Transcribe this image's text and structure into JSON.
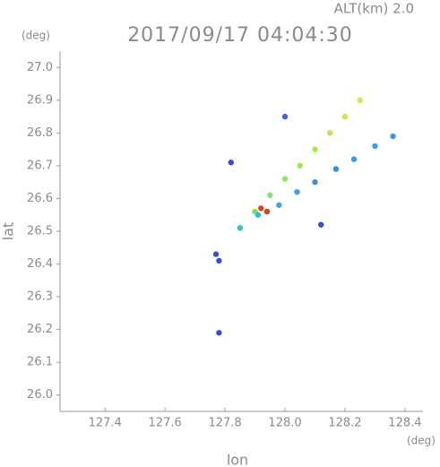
{
  "chart_data": {
    "type": "scatter",
    "title": "2017/09/17 04:04:30",
    "subtitle": "ALT(km) 2.0",
    "x_label": "lon",
    "y_label": "lat",
    "x_unit": "(deg)",
    "y_unit": "(deg)",
    "x": [
      127.85,
      127.9,
      127.95,
      128.0,
      128.05,
      128.1,
      128.15,
      128.2,
      128.25,
      127.85,
      127.91,
      127.98,
      128.04,
      128.1,
      128.17,
      128.23,
      128.3,
      128.36,
      128.0,
      127.77,
      127.78,
      127.78,
      127.82,
      128.12,
      127.92,
      127.94
    ],
    "y": [
      26.51,
      26.56,
      26.61,
      26.66,
      26.7,
      26.75,
      26.8,
      26.85,
      26.9,
      26.51,
      26.55,
      26.58,
      26.62,
      26.65,
      26.69,
      26.72,
      26.76,
      26.79,
      26.85,
      26.43,
      26.41,
      26.19,
      26.71,
      26.52,
      26.57,
      26.56
    ],
    "colors": [
      "#8ce05a",
      "#84e060",
      "#7ee46a",
      "#8ae65a",
      "#9ae850",
      "#a6ea4a",
      "#b2ec44",
      "#bcee40",
      "#c8f03c",
      "#40c0c0",
      "#3cb4d8",
      "#38a8e0",
      "#3aa0e4",
      "#3494e8",
      "#3090ea",
      "#3a98ec",
      "#3c9cee",
      "#4090f0",
      "#4060e8",
      "#3050d8",
      "#3050d8",
      "#3050d8",
      "#3050d8",
      "#3050d8",
      "#e04020",
      "#e04020"
    ],
    "xlim": [
      127.25,
      128.46
    ],
    "ylim": [
      25.95,
      27.05
    ],
    "xticks": [
      127.4,
      127.6,
      127.8,
      {
        "value": 128.0,
        "label": "128.0"
      },
      128.2,
      128.4
    ],
    "yticks": [
      {
        "value": 26.0,
        "label": "26.0"
      },
      26.1,
      26.2,
      26.3,
      26.4,
      26.5,
      26.6,
      26.7,
      26.8,
      26.9,
      {
        "value": 27.0,
        "label": "27.0"
      }
    ]
  }
}
